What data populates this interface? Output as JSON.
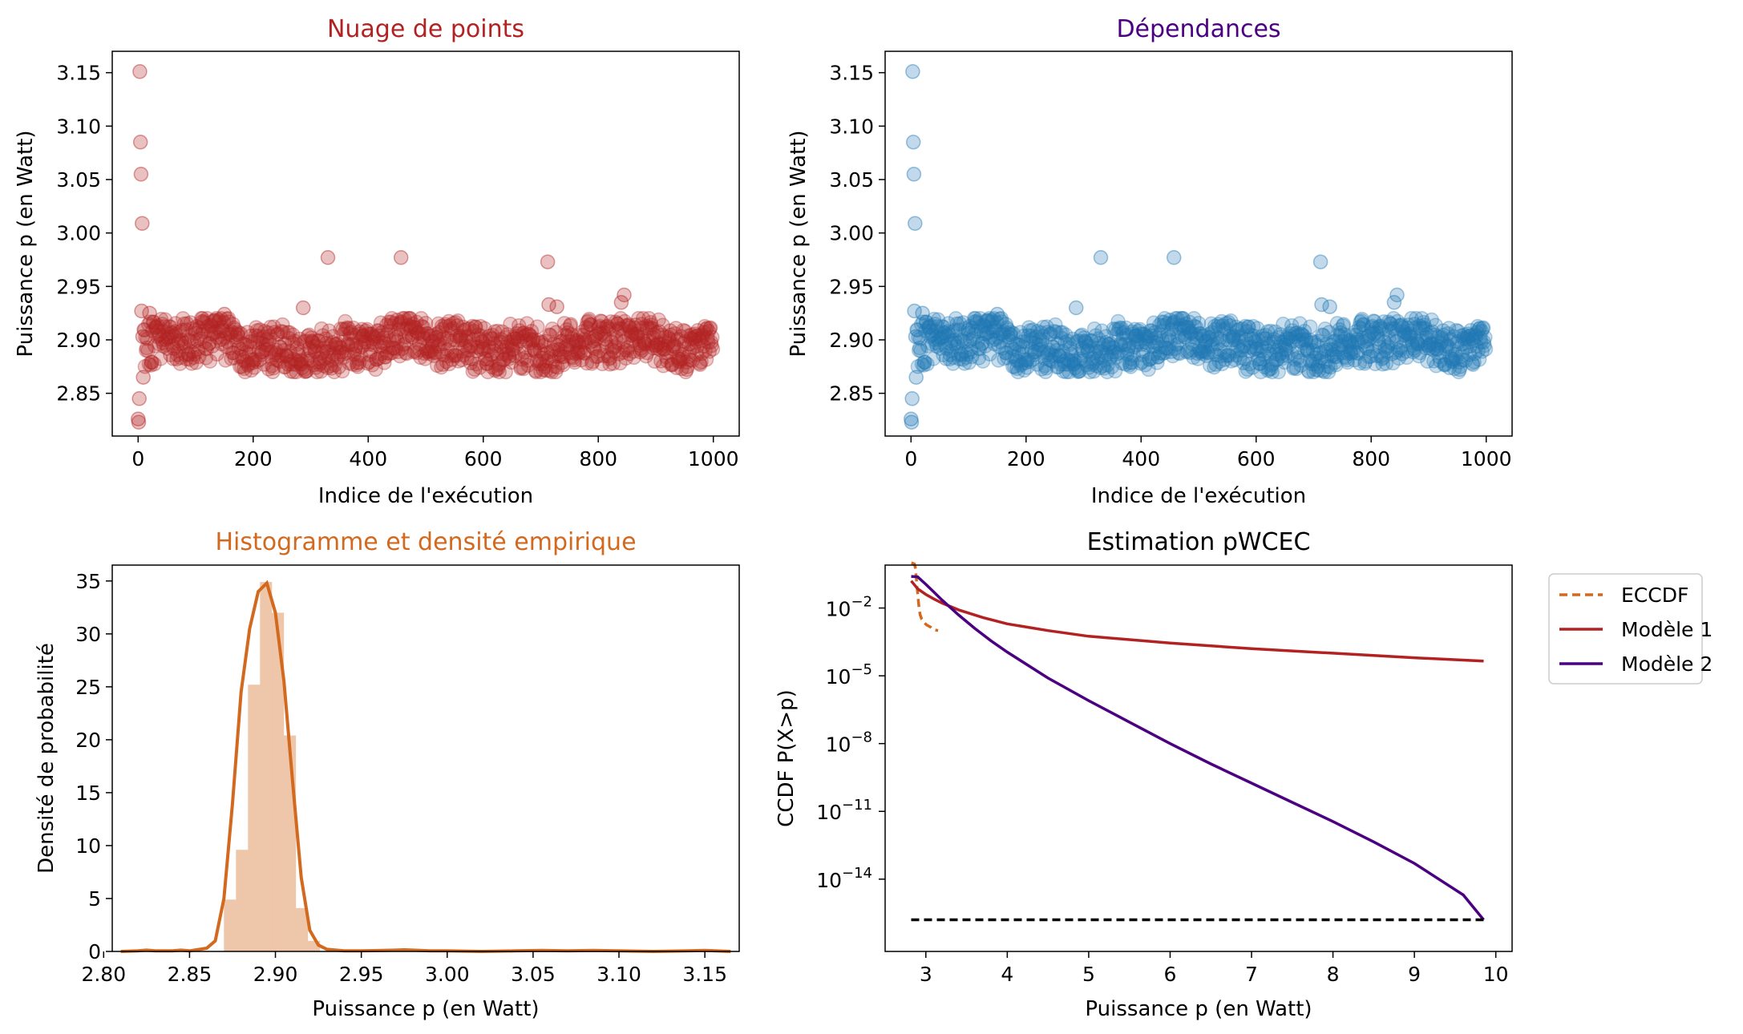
{
  "colors": {
    "scatter_red": "#b22222",
    "scatter_blue": "#1f77b4",
    "hist_orange": "#d2691e",
    "model1": "#b22222",
    "model2": "#4b0082",
    "threshold": "#000000"
  },
  "chart_data": [
    {
      "type": "scatter",
      "title": "Nuage de points",
      "xlabel": "Indice de l'exécution",
      "ylabel": "Puissance p (en Watt)",
      "xlim": [
        -45,
        1045
      ],
      "ylim": [
        2.81,
        3.17
      ],
      "xticks": [
        0,
        200,
        400,
        600,
        800,
        1000
      ],
      "yticks": [
        2.85,
        2.9,
        2.95,
        3.0,
        3.05,
        3.1,
        3.15
      ],
      "ytick_labels": [
        "2.85",
        "2.90",
        "2.95",
        "3.00",
        "3.05",
        "3.10",
        "3.15"
      ],
      "n_points": 1000,
      "typical_range": [
        2.87,
        2.92
      ],
      "outliers": [
        {
          "x": 0,
          "y": 2.826
        },
        {
          "x": 1,
          "y": 2.823
        },
        {
          "x": 2,
          "y": 2.845
        },
        {
          "x": 3,
          "y": 3.151
        },
        {
          "x": 4,
          "y": 3.085
        },
        {
          "x": 5,
          "y": 3.055
        },
        {
          "x": 6,
          "y": 2.927
        },
        {
          "x": 7,
          "y": 3.009
        },
        {
          "x": 8,
          "y": 2.903
        },
        {
          "x": 9,
          "y": 2.865
        },
        {
          "x": 20,
          "y": 2.925
        },
        {
          "x": 150,
          "y": 2.924
        },
        {
          "x": 287,
          "y": 2.93
        },
        {
          "x": 330,
          "y": 2.977
        },
        {
          "x": 457,
          "y": 2.977
        },
        {
          "x": 712,
          "y": 2.973
        },
        {
          "x": 714,
          "y": 2.933
        },
        {
          "x": 728,
          "y": 2.931
        },
        {
          "x": 840,
          "y": 2.935
        },
        {
          "x": 845,
          "y": 2.942
        }
      ]
    },
    {
      "type": "scatter",
      "title": "Dépendances",
      "xlabel": "Indice de l'exécution",
      "ylabel": "Puissance p (en Watt)",
      "xlim": [
        -45,
        1045
      ],
      "ylim": [
        2.81,
        3.17
      ],
      "xticks": [
        0,
        200,
        400,
        600,
        800,
        1000
      ],
      "yticks": [
        2.85,
        2.9,
        2.95,
        3.0,
        3.05,
        3.1,
        3.15
      ],
      "ytick_labels": [
        "2.85",
        "2.90",
        "2.95",
        "3.00",
        "3.05",
        "3.10",
        "3.15"
      ],
      "n_points": 1000,
      "typical_range": [
        2.87,
        2.92
      ],
      "outliers": [
        {
          "x": 0,
          "y": 2.826
        },
        {
          "x": 1,
          "y": 2.823
        },
        {
          "x": 2,
          "y": 2.845
        },
        {
          "x": 3,
          "y": 3.151
        },
        {
          "x": 4,
          "y": 3.085
        },
        {
          "x": 5,
          "y": 3.055
        },
        {
          "x": 6,
          "y": 2.927
        },
        {
          "x": 7,
          "y": 3.009
        },
        {
          "x": 8,
          "y": 2.903
        },
        {
          "x": 9,
          "y": 2.865
        },
        {
          "x": 20,
          "y": 2.925
        },
        {
          "x": 150,
          "y": 2.924
        },
        {
          "x": 287,
          "y": 2.93
        },
        {
          "x": 330,
          "y": 2.977
        },
        {
          "x": 457,
          "y": 2.977
        },
        {
          "x": 712,
          "y": 2.973
        },
        {
          "x": 714,
          "y": 2.933
        },
        {
          "x": 728,
          "y": 2.931
        },
        {
          "x": 840,
          "y": 2.935
        },
        {
          "x": 845,
          "y": 2.942
        }
      ]
    },
    {
      "type": "bar",
      "title": "Histogramme et densité empirique",
      "xlabel": "Puissance p (en Watt)",
      "ylabel": "Densité de probabilité",
      "xlim": [
        2.805,
        3.17
      ],
      "ylim": [
        0,
        36.5
      ],
      "xticks": [
        2.8,
        2.85,
        2.9,
        2.95,
        3.0,
        3.05,
        3.1,
        3.15
      ],
      "xtick_labels": [
        "2.80",
        "2.85",
        "2.90",
        "2.95",
        "3.00",
        "3.05",
        "3.10",
        "3.15"
      ],
      "yticks": [
        0,
        5,
        10,
        15,
        20,
        25,
        30,
        35
      ],
      "bins": [
        {
          "x0": 2.87,
          "x1": 2.877,
          "value": 4.9
        },
        {
          "x0": 2.877,
          "x1": 2.884,
          "value": 9.6
        },
        {
          "x0": 2.884,
          "x1": 2.891,
          "value": 25.2
        },
        {
          "x0": 2.891,
          "x1": 2.898,
          "value": 34.9
        },
        {
          "x0": 2.898,
          "x1": 2.905,
          "value": 32.0
        },
        {
          "x0": 2.905,
          "x1": 2.912,
          "value": 20.4
        },
        {
          "x0": 2.912,
          "x1": 2.919,
          "value": 4.1
        },
        {
          "x0": 2.919,
          "x1": 2.926,
          "value": 1.0
        }
      ],
      "density": {
        "x": [
          2.81,
          2.82,
          2.825,
          2.83,
          2.84,
          2.845,
          2.85,
          2.86,
          2.865,
          2.87,
          2.875,
          2.88,
          2.885,
          2.89,
          2.895,
          2.9,
          2.905,
          2.91,
          2.915,
          2.92,
          2.925,
          2.93,
          2.94,
          2.95,
          2.96,
          2.97,
          2.975,
          2.98,
          2.99,
          3.0,
          3.02,
          3.04,
          3.055,
          3.07,
          3.085,
          3.1,
          3.12,
          3.14,
          3.15,
          3.165
        ],
        "y": [
          0.0,
          0.05,
          0.12,
          0.05,
          0.05,
          0.12,
          0.05,
          0.3,
          1.0,
          5.0,
          14.0,
          24.5,
          30.5,
          34.0,
          34.8,
          32.0,
          25.5,
          16.0,
          7.0,
          2.0,
          0.6,
          0.2,
          0.05,
          0.05,
          0.08,
          0.12,
          0.15,
          0.12,
          0.05,
          0.05,
          0.0,
          0.05,
          0.1,
          0.05,
          0.1,
          0.05,
          0.0,
          0.05,
          0.1,
          0.0
        ]
      }
    },
    {
      "type": "line",
      "title": "Estimation pWCEC",
      "xlabel": "Puissance p (en Watt)",
      "ylabel": "CCDF P(X>p)",
      "scale_y": "log",
      "xlim": [
        2.5,
        10.2
      ],
      "ylim_log10": [
        -17.2,
        -0.1
      ],
      "xticks": [
        3,
        4,
        5,
        6,
        7,
        8,
        9,
        10
      ],
      "yticks_exp": [
        -2,
        -5,
        -8,
        -11,
        -14
      ],
      "ytick_base": "10",
      "legend_position": "outside-right",
      "legend": [
        "ECCDF",
        "Modèle 1",
        "Modèle 2"
      ],
      "series": [
        {
          "name": "ECCDF",
          "style": "dashed",
          "x": [
            2.823,
            2.86,
            2.87,
            2.875,
            2.88,
            2.885,
            2.89,
            2.9,
            2.91,
            2.92,
            2.93,
            2.95,
            2.98,
            3.01,
            3.06,
            3.09,
            3.15
          ],
          "log10_y": [
            -0.002,
            -0.05,
            -0.2,
            -0.4,
            -0.55,
            -0.75,
            -1.0,
            -1.35,
            -1.75,
            -2.1,
            -2.3,
            -2.5,
            -2.65,
            -2.75,
            -2.85,
            -2.95,
            -3.0
          ]
        },
        {
          "name": "Modèle 1",
          "style": "solid",
          "x": [
            2.82,
            2.9,
            3.0,
            3.1,
            3.2,
            3.4,
            3.7,
            4.0,
            4.5,
            5.0,
            6.0,
            7.0,
            8.0,
            9.0,
            9.85
          ],
          "log10_y": [
            -0.8,
            -1.15,
            -1.4,
            -1.6,
            -1.78,
            -2.08,
            -2.42,
            -2.7,
            -3.0,
            -3.25,
            -3.55,
            -3.8,
            -4.0,
            -4.2,
            -4.35
          ]
        },
        {
          "name": "Modèle 2",
          "style": "solid",
          "x": [
            2.82,
            2.9,
            3.0,
            3.1,
            3.2,
            3.4,
            3.6,
            3.8,
            4.0,
            4.5,
            5.0,
            5.5,
            6.0,
            6.5,
            7.0,
            7.5,
            8.0,
            8.5,
            9.0,
            9.3,
            9.6,
            9.85
          ],
          "log10_y": [
            -0.6,
            -0.62,
            -0.95,
            -1.3,
            -1.65,
            -2.3,
            -2.9,
            -3.45,
            -3.95,
            -5.1,
            -6.1,
            -7.05,
            -8.0,
            -8.9,
            -9.75,
            -10.6,
            -11.45,
            -12.35,
            -13.3,
            -14.0,
            -14.7,
            -15.8
          ]
        },
        {
          "name": "",
          "style": "dashed",
          "x": [
            2.82,
            9.85
          ],
          "log10_y": [
            -15.8,
            -15.8
          ]
        }
      ]
    }
  ]
}
